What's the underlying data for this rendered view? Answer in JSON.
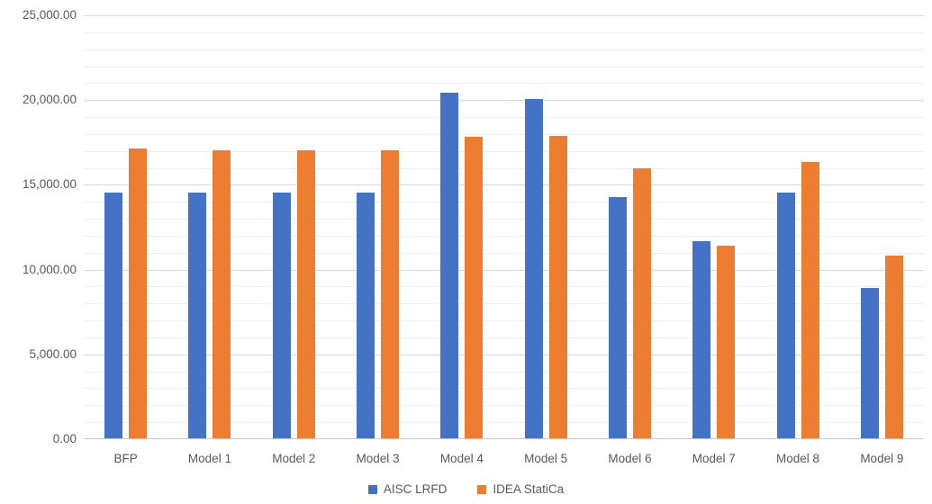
{
  "chart_data": {
    "type": "bar",
    "title": "",
    "categories": [
      "BFP",
      "Model 1",
      "Model 2",
      "Model 3",
      "Model 4",
      "Model 5",
      "Model 6",
      "Model 7",
      "Model 8",
      "Model 9"
    ],
    "series": [
      {
        "name": "AISC LRFD",
        "color": "#4472C4",
        "values": [
          14500,
          14500,
          14500,
          14500,
          20400,
          20000,
          14200,
          11600,
          14500,
          8850
        ]
      },
      {
        "name": "IDEA StatiCa",
        "color": "#ED7D31",
        "values": [
          17100,
          17000,
          17000,
          17000,
          17800,
          17850,
          15900,
          11350,
          16300,
          10800
        ]
      }
    ],
    "xlabel": "",
    "ylabel": "",
    "ylim": [
      0,
      25000
    ],
    "y_axis": {
      "min": 0,
      "max": 25000,
      "major_step": 5000,
      "minor_step": 1000,
      "major_tick_labels": [
        "0.00",
        "5,000.00",
        "10,000.00",
        "15,000.00",
        "20,000.00",
        "25,000.00"
      ]
    },
    "grid": "on",
    "legend_position": "bottom",
    "colors": {
      "major_gridline": "#D9D9D9",
      "minor_gridline": "#EFEFEF",
      "axis_line": "#C9C9C9",
      "text": "#595959",
      "background": "#FFFFFF"
    }
  }
}
